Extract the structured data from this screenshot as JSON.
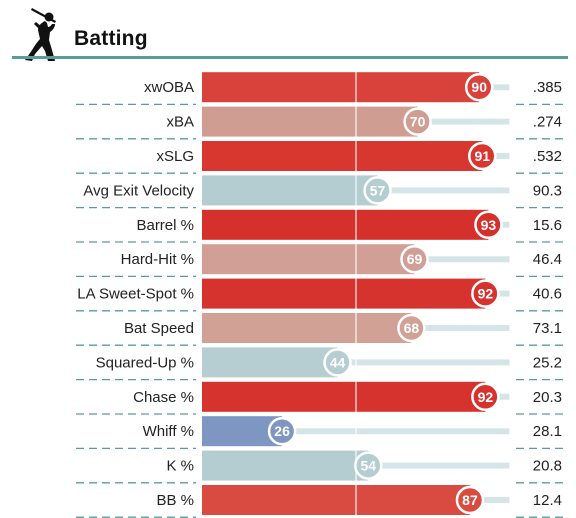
{
  "section": {
    "title": "Batting",
    "icon": "batter-silhouette-icon"
  },
  "colors": {
    "elite_red": "#d7342f",
    "good_pink": "#d09d92",
    "avg_teal": "#b4cdd0",
    "poor_blue": "#7e96c2",
    "track": "#d5e5e7",
    "rule": "#5a9c9c"
  },
  "chart_data": {
    "type": "bar",
    "orientation": "horizontal",
    "xlim": [
      0,
      100
    ],
    "reference_lines": [
      50,
      100
    ],
    "metrics": [
      {
        "label": "xwOBA",
        "percentile": 90,
        "value": ".385",
        "color": "#d9413b"
      },
      {
        "label": "xBA",
        "percentile": 70,
        "value": ".274",
        "color": "#d09d92"
      },
      {
        "label": "xSLG",
        "percentile": 91,
        "value": ".532",
        "color": "#d7372f"
      },
      {
        "label": "Avg Exit Velocity",
        "percentile": 57,
        "value": "90.3",
        "color": "#b4cdd0"
      },
      {
        "label": "Barrel %",
        "percentile": 93,
        "value": "15.6",
        "color": "#d6302c"
      },
      {
        "label": "Hard-Hit %",
        "percentile": 69,
        "value": "46.4",
        "color": "#d19f95"
      },
      {
        "label": "LA Sweet-Spot %",
        "percentile": 92,
        "value": "40.6",
        "color": "#d7332e"
      },
      {
        "label": "Bat Speed",
        "percentile": 68,
        "value": "73.1",
        "color": "#d2a195"
      },
      {
        "label": "Squared-Up %",
        "percentile": 44,
        "value": "25.2",
        "color": "#b6ced2"
      },
      {
        "label": "Chase %",
        "percentile": 92,
        "value": "20.3",
        "color": "#d7332e"
      },
      {
        "label": "Whiff %",
        "percentile": 26,
        "value": "28.1",
        "color": "#7e96c2"
      },
      {
        "label": "K %",
        "percentile": 54,
        "value": "20.8",
        "color": "#b4cdd0"
      },
      {
        "label": "BB %",
        "percentile": 87,
        "value": "12.4",
        "color": "#d94b40"
      }
    ]
  }
}
